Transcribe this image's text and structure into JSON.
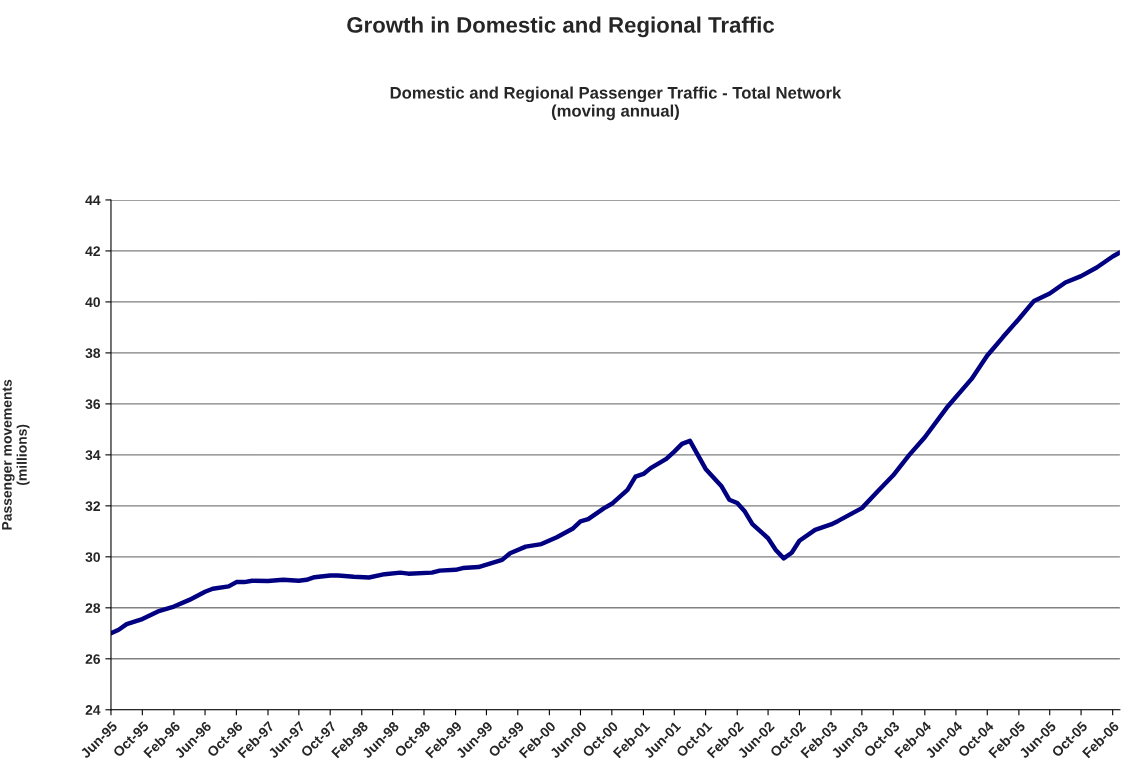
{
  "chart_data": {
    "type": "line",
    "title": "Growth in Domestic and Regional Traffic",
    "subtitle": "Domestic and Regional Passenger Traffic - Total Network\n(moving annual)",
    "ylabel": "Passenger movements\n(millions)",
    "x": [
      "1995-06",
      "1995-07",
      "1995-08",
      "1995-10",
      "1995-12",
      "1996-02",
      "1996-04",
      "1996-06",
      "1996-07",
      "1996-09",
      "1996-10",
      "1996-11",
      "1996-12",
      "1997-02",
      "1997-04",
      "1997-06",
      "1997-07",
      "1997-08",
      "1997-10",
      "1997-11",
      "1998-01",
      "1998-03",
      "1998-05",
      "1998-07",
      "1998-08",
      "1998-11",
      "1998-12",
      "1999-02",
      "1999-03",
      "1999-05",
      "1999-08",
      "1999-09",
      "1999-11",
      "2000-01",
      "2000-03",
      "2000-05",
      "2000-06",
      "2000-07",
      "2000-09",
      "2000-10",
      "2000-12",
      "2001-01",
      "2001-02",
      "2001-03",
      "2001-05",
      "2001-06",
      "2001-07",
      "2001-08",
      "2001-10",
      "2001-12",
      "2002-01",
      "2002-02",
      "2002-03",
      "2002-04",
      "2002-06",
      "2002-07",
      "2002-08",
      "2002-09",
      "2002-10",
      "2002-12",
      "2003-02",
      "2003-03",
      "2003-06",
      "2003-08",
      "2003-10",
      "2003-12",
      "2004-02",
      "2004-05",
      "2004-08",
      "2004-10",
      "2004-11",
      "2004-12",
      "2005-02",
      "2005-04",
      "2005-06",
      "2005-08",
      "2005-10",
      "2005-12",
      "2006-02",
      "2006-03"
    ],
    "series": [
      {
        "color": "#000080",
        "values": [
          27.0,
          27.14,
          27.36,
          27.56,
          27.86,
          28.05,
          28.31,
          28.63,
          28.75,
          28.84,
          29.01,
          29.01,
          29.06,
          29.05,
          29.1,
          29.06,
          29.1,
          29.2,
          29.27,
          29.27,
          29.22,
          29.19,
          29.32,
          29.38,
          29.34,
          29.38,
          29.46,
          29.49,
          29.56,
          29.6,
          29.88,
          30.14,
          30.4,
          30.5,
          30.77,
          31.1,
          31.39,
          31.48,
          31.91,
          32.08,
          32.63,
          33.15,
          33.25,
          33.48,
          33.84,
          34.13,
          34.43,
          34.55,
          33.45,
          32.78,
          32.24,
          32.11,
          31.8,
          31.28,
          30.73,
          30.27,
          29.94,
          30.16,
          30.63,
          31.06,
          31.27,
          31.41,
          31.91,
          32.56,
          33.2,
          33.98,
          34.69,
          35.91,
          36.98,
          37.9,
          38.26,
          38.62,
          39.33,
          40.04,
          40.33,
          40.76,
          41.01,
          41.35,
          41.78,
          41.94
        ]
      }
    ],
    "xlim": [
      "1995-06",
      "2006-03"
    ],
    "xticks": [
      {
        "value": "1995-06",
        "label": "Jun-95"
      },
      {
        "value": "1995-10",
        "label": "Oct-95"
      },
      {
        "value": "1996-02",
        "label": "Feb-96"
      },
      {
        "value": "1996-06",
        "label": "Jun-96"
      },
      {
        "value": "1996-10",
        "label": "Oct-96"
      },
      {
        "value": "1997-02",
        "label": "Feb-97"
      },
      {
        "value": "1997-06",
        "label": "Jun-97"
      },
      {
        "value": "1997-10",
        "label": "Oct-97"
      },
      {
        "value": "1998-02",
        "label": "Feb-98"
      },
      {
        "value": "1998-06",
        "label": "Jun-98"
      },
      {
        "value": "1998-10",
        "label": "Oct-98"
      },
      {
        "value": "1999-02",
        "label": "Feb-99"
      },
      {
        "value": "1999-06",
        "label": "Jun-99"
      },
      {
        "value": "1999-10",
        "label": "Oct-99"
      },
      {
        "value": "2000-02",
        "label": "Feb-00"
      },
      {
        "value": "2000-06",
        "label": "Jun-00"
      },
      {
        "value": "2000-10",
        "label": "Oct-00"
      },
      {
        "value": "2001-02",
        "label": "Feb-01"
      },
      {
        "value": "2001-06",
        "label": "Jun-01"
      },
      {
        "value": "2001-10",
        "label": "Oct-01"
      },
      {
        "value": "2002-02",
        "label": "Feb-02"
      },
      {
        "value": "2002-06",
        "label": "Jun-02"
      },
      {
        "value": "2002-10",
        "label": "Oct-02"
      },
      {
        "value": "2003-02",
        "label": "Feb-03"
      },
      {
        "value": "2003-06",
        "label": "Jun-03"
      },
      {
        "value": "2003-10",
        "label": "Oct-03"
      },
      {
        "value": "2004-02",
        "label": "Feb-04"
      },
      {
        "value": "2004-06",
        "label": "Jun-04"
      },
      {
        "value": "2004-10",
        "label": "Oct-04"
      },
      {
        "value": "2005-02",
        "label": "Feb-05"
      },
      {
        "value": "2005-06",
        "label": "Jun-05"
      },
      {
        "value": "2005-10",
        "label": "Oct-05"
      },
      {
        "value": "2006-02",
        "label": "Feb-06"
      }
    ],
    "ylim": [
      24,
      44
    ],
    "yticks": [
      24,
      26,
      28,
      30,
      32,
      34,
      36,
      38,
      40,
      42,
      44
    ],
    "grid": "y",
    "legend": false,
    "marker": "none",
    "line_style": "solid"
  }
}
